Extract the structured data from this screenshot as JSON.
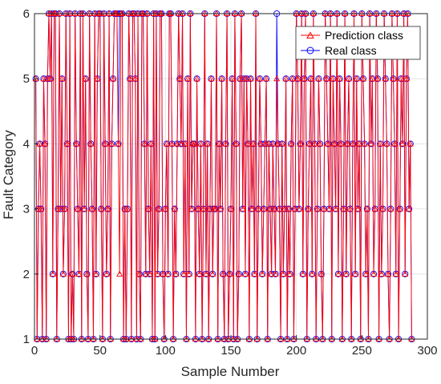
{
  "chart_data": {
    "type": "line",
    "title": "",
    "xlabel": "Sample Number",
    "ylabel": "Fault Category",
    "xlim": [
      0,
      300
    ],
    "ylim": [
      1,
      6
    ],
    "xticks": [
      0,
      50,
      100,
      150,
      200,
      250,
      300
    ],
    "yticks": [
      1,
      2,
      3,
      4,
      5,
      6
    ],
    "grid": true,
    "legend_position": "top-right",
    "series": [
      {
        "name": "Prediction class",
        "color": "#ff0000",
        "marker": "triangle",
        "values": [
          5,
          1,
          3,
          4,
          3,
          1,
          5,
          4,
          1,
          5,
          6,
          5,
          6,
          2,
          6,
          6,
          1,
          3,
          6,
          3,
          5,
          2,
          3,
          6,
          4,
          1,
          6,
          1,
          2,
          1,
          6,
          4,
          3,
          2,
          6,
          1,
          6,
          3,
          5,
          2,
          1,
          6,
          4,
          3,
          1,
          6,
          2,
          5,
          6,
          6,
          3,
          1,
          6,
          4,
          2,
          3,
          6,
          1,
          4,
          5,
          6,
          6,
          6,
          4,
          2,
          6,
          6,
          1,
          3,
          1,
          3,
          6,
          5,
          1,
          6,
          6,
          5,
          1,
          6,
          2,
          1,
          6,
          6,
          4,
          2,
          6,
          3,
          2,
          4,
          1,
          6,
          1,
          6,
          2,
          3,
          6,
          6,
          2,
          1,
          3,
          4,
          2,
          6,
          6,
          4,
          1,
          3,
          2,
          4,
          6,
          5,
          4,
          6,
          2,
          4,
          1,
          5,
          2,
          6,
          3,
          4,
          4,
          1,
          5,
          3,
          2,
          4,
          1,
          3,
          6,
          2,
          4,
          1,
          3,
          5,
          2,
          3,
          3,
          6,
          1,
          4,
          3,
          5,
          2,
          1,
          4,
          6,
          1,
          2,
          3,
          5,
          1,
          6,
          4,
          1,
          2,
          5,
          6,
          3,
          5,
          2,
          5,
          4,
          1,
          5,
          3,
          4,
          2,
          6,
          1,
          3,
          5,
          4,
          2,
          3,
          4,
          5,
          1,
          4,
          3,
          2,
          4,
          3,
          2,
          5,
          4,
          3,
          1,
          4,
          2,
          3,
          5,
          1,
          3,
          2,
          4,
          5,
          1,
          3,
          6,
          5,
          3,
          4,
          6,
          2,
          5,
          6,
          1,
          3,
          4,
          5,
          2,
          6,
          4,
          1,
          3,
          5,
          4,
          2,
          1,
          3,
          6,
          5,
          4,
          3,
          6,
          1,
          5,
          4,
          3,
          6,
          2,
          5,
          4,
          1,
          3,
          6,
          2,
          4,
          5,
          3,
          1,
          4,
          6,
          2,
          5,
          3,
          4,
          1,
          6,
          5,
          4,
          2,
          3,
          1,
          6,
          4,
          5,
          2,
          3,
          6,
          5,
          1,
          4,
          2,
          3,
          6,
          5,
          4,
          2,
          1,
          3,
          6,
          5,
          4,
          2,
          6,
          1,
          3,
          5,
          4,
          6,
          2,
          5,
          6,
          3,
          4,
          1
        ]
      },
      {
        "name": "Real class",
        "color": "#0000ff",
        "marker": "circle",
        "values": [
          5,
          1,
          3,
          4,
          3,
          1,
          5,
          4,
          1,
          5,
          6,
          5,
          6,
          2,
          6,
          6,
          1,
          3,
          6,
          3,
          5,
          2,
          3,
          6,
          4,
          1,
          6,
          1,
          2,
          1,
          6,
          4,
          3,
          2,
          6,
          1,
          6,
          3,
          5,
          2,
          1,
          6,
          4,
          3,
          1,
          6,
          2,
          5,
          6,
          6,
          3,
          1,
          6,
          4,
          2,
          3,
          6,
          1,
          4,
          5,
          6,
          6,
          6,
          4,
          6,
          6,
          6,
          1,
          3,
          1,
          3,
          6,
          5,
          1,
          6,
          6,
          5,
          1,
          6,
          2,
          1,
          6,
          6,
          4,
          2,
          6,
          3,
          2,
          4,
          1,
          6,
          1,
          6,
          2,
          3,
          6,
          6,
          2,
          1,
          3,
          4,
          2,
          6,
          6,
          4,
          1,
          3,
          2,
          4,
          6,
          5,
          4,
          6,
          2,
          4,
          1,
          5,
          2,
          6,
          3,
          4,
          4,
          1,
          5,
          3,
          2,
          4,
          1,
          3,
          6,
          2,
          4,
          1,
          3,
          5,
          2,
          3,
          3,
          6,
          1,
          4,
          3,
          5,
          2,
          1,
          4,
          6,
          1,
          2,
          3,
          5,
          1,
          6,
          4,
          1,
          2,
          5,
          6,
          3,
          5,
          2,
          5,
          4,
          1,
          5,
          3,
          4,
          2,
          6,
          1,
          3,
          5,
          4,
          2,
          3,
          4,
          5,
          1,
          4,
          3,
          2,
          4,
          3,
          2,
          6,
          4,
          3,
          1,
          4,
          2,
          3,
          5,
          1,
          3,
          2,
          4,
          5,
          1,
          3,
          6,
          5,
          3,
          4,
          6,
          2,
          5,
          6,
          1,
          3,
          4,
          5,
          2,
          6,
          4,
          1,
          3,
          5,
          4,
          2,
          1,
          3,
          6,
          5,
          4,
          3,
          6,
          1,
          5,
          4,
          3,
          6,
          2,
          5,
          4,
          1,
          3,
          6,
          2,
          4,
          5,
          3,
          1,
          4,
          6,
          2,
          5,
          3,
          4,
          1,
          6,
          5,
          4,
          2,
          3,
          1,
          6,
          4,
          5,
          2,
          3,
          6,
          5,
          1,
          4,
          2,
          3,
          6,
          5,
          4,
          2,
          1,
          3,
          6,
          5,
          4,
          2,
          6,
          1,
          3,
          5,
          4,
          6,
          2,
          5,
          6,
          3,
          4,
          1
        ]
      }
    ]
  }
}
